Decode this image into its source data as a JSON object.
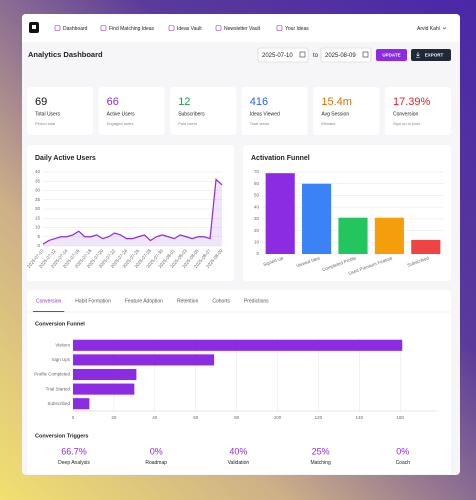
{
  "nav": {
    "items": [
      "Dashboard",
      "Find Matching Ideas",
      "Ideas Vault",
      "Newsletter Vault",
      "Your Ideas"
    ],
    "user": "Arvid Kahl"
  },
  "header": {
    "title": "Analytics Dashboard",
    "date_from": "2025-07-10",
    "date_sep": "to",
    "date_to": "2025-08-09",
    "update": "UPDATE",
    "export": "EXPORT"
  },
  "stats": [
    {
      "value": "69",
      "label": "Total Users",
      "sub": "Period total",
      "color": "#111111"
    },
    {
      "value": "66",
      "label": "Active Users",
      "sub": "Engaged users",
      "color": "#8b2be2"
    },
    {
      "value": "12",
      "label": "Subscribers",
      "sub": "Paid users",
      "color": "#16a34a"
    },
    {
      "value": "416",
      "label": "Ideas Viewed",
      "sub": "Total views",
      "color": "#2563eb"
    },
    {
      "value": "15.4m",
      "label": "Avg Session",
      "sub": "Minutes",
      "color": "#d97706"
    },
    {
      "value": "17.39%",
      "label": "Conversion",
      "sub": "Sign up to paid",
      "color": "#dc2626"
    }
  ],
  "chart_data": [
    {
      "type": "line",
      "title": "Daily Active Users",
      "color": "#8b2be2",
      "categories": [
        "2025-07-10",
        null,
        "2025-07-12",
        null,
        "2025-07-14",
        null,
        "2025-07-16",
        null,
        "2025-07-18",
        null,
        "2025-07-20",
        null,
        "2025-07-22",
        null,
        "2025-07-24",
        null,
        "2025-07-26",
        null,
        "2025-07-28",
        null,
        "2025-07-30",
        null,
        "2025-08-01",
        null,
        "2025-08-03",
        null,
        "2025-08-05",
        null,
        "2025-08-07",
        null,
        "2025-08-09"
      ],
      "values": [
        1,
        3,
        4,
        5,
        5,
        6,
        8,
        5,
        5,
        6,
        4,
        5,
        7,
        6,
        4,
        4,
        5,
        6,
        3,
        5,
        6,
        5,
        4,
        6,
        5,
        4,
        5,
        5,
        4,
        36,
        33
      ],
      "ylim": [
        0,
        40
      ],
      "yticks": [
        0,
        5,
        10,
        15,
        20,
        25,
        30,
        35,
        40
      ],
      "grid": true
    },
    {
      "type": "bar",
      "title": "Activation Funnel",
      "categories": [
        "Signed Up",
        "Viewed Idea",
        "Completed Profile",
        "Used Premium Feature",
        "Subscribed"
      ],
      "values": [
        69,
        60,
        31,
        31,
        12
      ],
      "colors": [
        "#8b2be2",
        "#3b82f6",
        "#22c55e",
        "#f59e0b",
        "#ef4444"
      ],
      "ylim": [
        0,
        70
      ],
      "yticks": [
        0,
        10,
        20,
        30,
        40,
        50,
        60,
        70
      ],
      "grid": true
    },
    {
      "type": "barh",
      "title": "Conversion Funnel",
      "color": "#8b2be2",
      "categories": [
        "Visitors",
        "Sign Ups",
        "Profile Completed",
        "Trial Started",
        "Subscribed"
      ],
      "values": [
        161,
        69,
        31,
        30,
        8
      ],
      "xlim": [
        0,
        178
      ],
      "xticks": [
        0,
        20,
        40,
        60,
        80,
        100,
        120,
        140,
        160
      ],
      "grid": true
    }
  ],
  "tabs": [
    "Conversion",
    "Habit Formation",
    "Feature Adoption",
    "Retention",
    "Cohorts",
    "Predictions"
  ],
  "triggers": {
    "title": "Conversion Triggers",
    "items": [
      {
        "value": "66.7%",
        "label": "Deep Analysis"
      },
      {
        "value": "0%",
        "label": "Roadmap"
      },
      {
        "value": "40%",
        "label": "Validation"
      },
      {
        "value": "25%",
        "label": "Matching"
      },
      {
        "value": "0%",
        "label": "Coach"
      }
    ]
  }
}
